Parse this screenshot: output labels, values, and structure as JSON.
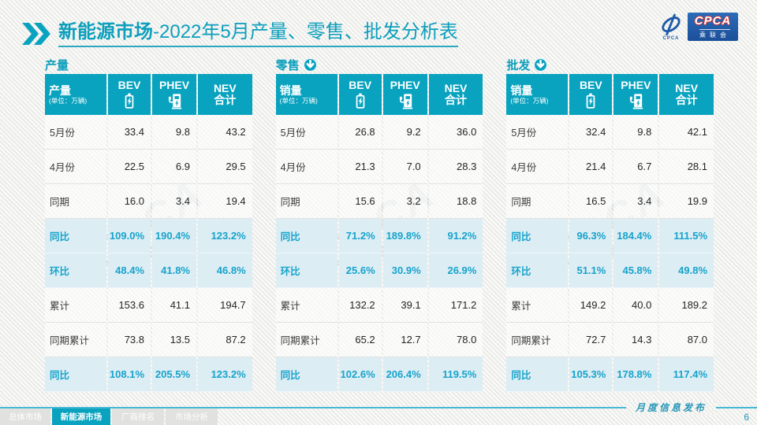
{
  "title": {
    "prefix_bold": "新能源市场",
    "suffix": "-2022年5月产量、零售、批发分析表"
  },
  "logo": {
    "swoosh_caption": "CPCA",
    "box_text": "CPCA",
    "box_subtext": "乘联会"
  },
  "watermark": {
    "line1": "CPCA",
    "line2": "乘联会"
  },
  "colors": {
    "accent_teal": "#09a3bf",
    "highlight_text": "#17a3cb",
    "highlight_bg": "#dcedf4",
    "logo_blue": "#1e5aa8",
    "footer_line": "#49b8d4"
  },
  "tables": [
    {
      "section": "产量",
      "arrow_icon": false,
      "header": {
        "label": "产量",
        "unit": "(单位：万辆)",
        "columns": [
          "BEV",
          "PHEV",
          "NEV"
        ],
        "total_label": "合计"
      },
      "rows": [
        {
          "label": "5月份",
          "highlight": false,
          "values": [
            "33.4",
            "9.8",
            "43.2"
          ]
        },
        {
          "label": "4月份",
          "highlight": false,
          "values": [
            "22.5",
            "6.9",
            "29.5"
          ]
        },
        {
          "label": "同期",
          "highlight": false,
          "values": [
            "16.0",
            "3.4",
            "19.4"
          ]
        },
        {
          "label": "同比",
          "highlight": true,
          "values": [
            "109.0%",
            "190.4%",
            "123.2%"
          ]
        },
        {
          "label": "环比",
          "highlight": true,
          "values": [
            "48.4%",
            "41.8%",
            "46.8%"
          ]
        },
        {
          "label": "累计",
          "highlight": false,
          "values": [
            "153.6",
            "41.1",
            "194.7"
          ]
        },
        {
          "label": "同期累计",
          "highlight": false,
          "values": [
            "73.8",
            "13.5",
            "87.2"
          ]
        },
        {
          "label": "同比",
          "highlight": true,
          "values": [
            "108.1%",
            "205.5%",
            "123.2%"
          ]
        }
      ]
    },
    {
      "section": "零售",
      "arrow_icon": true,
      "header": {
        "label": "销量",
        "unit": "(单位：万辆)",
        "columns": [
          "BEV",
          "PHEV",
          "NEV"
        ],
        "total_label": "合计"
      },
      "rows": [
        {
          "label": "5月份",
          "highlight": false,
          "values": [
            "26.8",
            "9.2",
            "36.0"
          ]
        },
        {
          "label": "4月份",
          "highlight": false,
          "values": [
            "21.3",
            "7.0",
            "28.3"
          ]
        },
        {
          "label": "同期",
          "highlight": false,
          "values": [
            "15.6",
            "3.2",
            "18.8"
          ]
        },
        {
          "label": "同比",
          "highlight": true,
          "values": [
            "71.2%",
            "189.8%",
            "91.2%"
          ]
        },
        {
          "label": "环比",
          "highlight": true,
          "values": [
            "25.6%",
            "30.9%",
            "26.9%"
          ]
        },
        {
          "label": "累计",
          "highlight": false,
          "values": [
            "132.2",
            "39.1",
            "171.2"
          ]
        },
        {
          "label": "同期累计",
          "highlight": false,
          "values": [
            "65.2",
            "12.7",
            "78.0"
          ]
        },
        {
          "label": "同比",
          "highlight": true,
          "values": [
            "102.6%",
            "206.4%",
            "119.5%"
          ]
        }
      ]
    },
    {
      "section": "批发",
      "arrow_icon": true,
      "header": {
        "label": "销量",
        "unit": "(单位：万辆)",
        "columns": [
          "BEV",
          "PHEV",
          "NEV"
        ],
        "total_label": "合计"
      },
      "rows": [
        {
          "label": "5月份",
          "highlight": false,
          "values": [
            "32.4",
            "9.8",
            "42.1"
          ]
        },
        {
          "label": "4月份",
          "highlight": false,
          "values": [
            "21.4",
            "6.7",
            "28.1"
          ]
        },
        {
          "label": "同期",
          "highlight": false,
          "values": [
            "16.5",
            "3.4",
            "19.9"
          ]
        },
        {
          "label": "同比",
          "highlight": true,
          "values": [
            "96.3%",
            "184.4%",
            "111.5%"
          ]
        },
        {
          "label": "环比",
          "highlight": true,
          "values": [
            "51.1%",
            "45.8%",
            "49.8%"
          ]
        },
        {
          "label": "累计",
          "highlight": false,
          "values": [
            "149.2",
            "40.0",
            "189.2"
          ]
        },
        {
          "label": "同期累计",
          "highlight": false,
          "values": [
            "72.7",
            "14.3",
            "87.0"
          ]
        },
        {
          "label": "同比",
          "highlight": true,
          "values": [
            "105.3%",
            "178.8%",
            "117.4%"
          ]
        }
      ]
    }
  ],
  "footer": {
    "tabs": [
      {
        "label": "总体市场",
        "active": false
      },
      {
        "label": "新能源市场",
        "active": true
      },
      {
        "label": "厂商排名",
        "active": false
      },
      {
        "label": "市场分析",
        "active": false
      }
    ],
    "publication_label": "月度信息发布",
    "page_number": "6"
  }
}
